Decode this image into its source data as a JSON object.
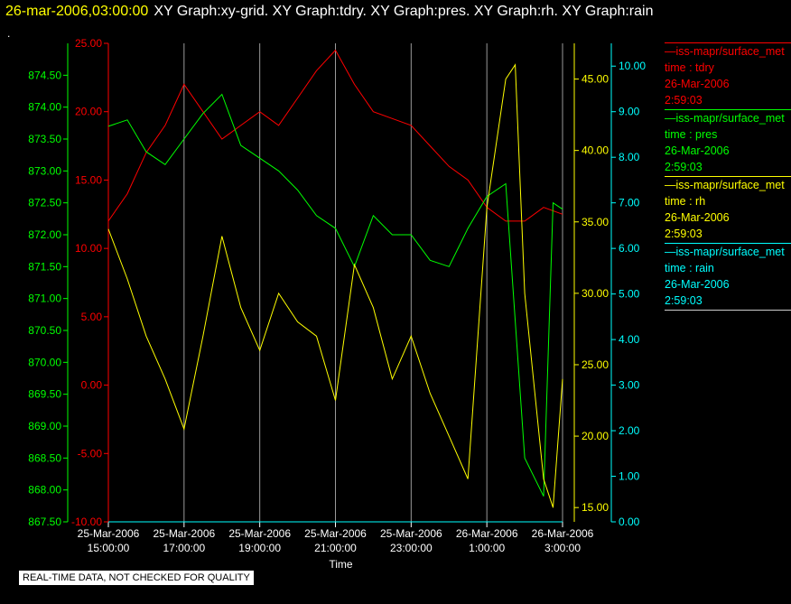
{
  "header": {
    "time": "26-mar-2006,03:00:00",
    "graphs": "XY Graph:xy-grid.  XY Graph:tdry.  XY Graph:pres.  XY Graph:rh.  XY Graph:rain",
    "dot": "."
  },
  "notice": "REAL-TIME DATA, NOT CHECKED FOR QUALITY",
  "chart_data": {
    "type": "line",
    "xlabel": "Time",
    "x_ticks": [
      {
        "date": "25-Mar-2006",
        "time": "15:00:00"
      },
      {
        "date": "25-Mar-2006",
        "time": "17:00:00"
      },
      {
        "date": "25-Mar-2006",
        "time": "19:00:00"
      },
      {
        "date": "25-Mar-2006",
        "time": "21:00:00"
      },
      {
        "date": "25-Mar-2006",
        "time": "23:00:00"
      },
      {
        "date": "26-Mar-2006",
        "time": "1:00:00"
      },
      {
        "date": "26-Mar-2006",
        "time": "3:00:00"
      }
    ],
    "x_range": [
      "25-Mar-2006 15:00",
      "26-Mar-2006 03:00"
    ],
    "grid": "vertical lines at x ticks",
    "axes": {
      "pres": {
        "color": "#00ff00",
        "range": [
          867.5,
          875.0
        ],
        "ticks": [
          "874.50",
          "874.00",
          "873.50",
          "873.00",
          "872.50",
          "872.00",
          "871.50",
          "871.00",
          "870.50",
          "870.00",
          "869.50",
          "869.00",
          "868.50",
          "868.00",
          "867.50"
        ]
      },
      "tdry": {
        "color": "#ff0000",
        "range": [
          -10.0,
          25.0
        ],
        "ticks": [
          "25.00",
          "20.00",
          "15.00",
          "10.00",
          "5.00",
          "0.00",
          "-5.00",
          "-10.00"
        ]
      },
      "rh": {
        "color": "#ffff00",
        "range": [
          14.0,
          47.5
        ],
        "ticks": [
          "45.00",
          "40.00",
          "35.00",
          "30.00",
          "25.00",
          "20.00",
          "15.00"
        ]
      },
      "rain": {
        "color": "#00ffff",
        "range": [
          0.0,
          10.5
        ],
        "ticks": [
          "10.00",
          "9.00",
          "8.00",
          "7.00",
          "6.00",
          "5.00",
          "4.00",
          "3.00",
          "2.00",
          "1.00",
          "0.00"
        ]
      }
    },
    "series": [
      {
        "name": "tdry",
        "color": "#ff0000",
        "x": [
          "15:00",
          "15:30",
          "16:00",
          "16:30",
          "17:00",
          "17:30",
          "18:00",
          "18:30",
          "19:00",
          "19:30",
          "20:00",
          "20:30",
          "21:00",
          "21:30",
          "22:00",
          "22:30",
          "23:00",
          "23:30",
          "00:00",
          "00:30",
          "01:00",
          "01:30",
          "02:00",
          "02:30",
          "03:00"
        ],
        "values": [
          12,
          14,
          17,
          19,
          22,
          20,
          18,
          19,
          20,
          19,
          21,
          23,
          24.5,
          22,
          20,
          19.5,
          19,
          17.5,
          16,
          15,
          13,
          12,
          12,
          13,
          12.5
        ]
      },
      {
        "name": "pres",
        "color": "#00ff00",
        "x": [
          "15:00",
          "15:30",
          "16:00",
          "16:30",
          "17:00",
          "17:30",
          "18:00",
          "18:30",
          "19:00",
          "19:30",
          "20:00",
          "20:30",
          "21:00",
          "21:30",
          "22:00",
          "22:30",
          "23:00",
          "23:30",
          "00:00",
          "00:30",
          "01:00",
          "01:30",
          "02:00",
          "02:30",
          "02:45",
          "03:00"
        ],
        "values": [
          873.7,
          873.8,
          873.3,
          873.1,
          873.5,
          873.9,
          874.2,
          873.4,
          873.2,
          873.0,
          872.7,
          872.3,
          872.1,
          871.5,
          872.3,
          872.0,
          872.0,
          871.6,
          871.5,
          872.1,
          872.6,
          872.8,
          868.5,
          867.9,
          872.5,
          872.4
        ]
      },
      {
        "name": "rh",
        "color": "#ffff00",
        "x": [
          "15:00",
          "15:30",
          "16:00",
          "16:30",
          "17:00",
          "17:30",
          "18:00",
          "18:30",
          "19:00",
          "19:30",
          "20:00",
          "20:30",
          "21:00",
          "21:30",
          "22:00",
          "22:30",
          "23:00",
          "23:30",
          "00:00",
          "00:30",
          "01:00",
          "01:30",
          "01:45",
          "02:00",
          "02:30",
          "02:45",
          "03:00"
        ],
        "values": [
          34.5,
          31,
          27,
          24,
          20.5,
          27,
          34,
          29,
          26,
          30,
          28,
          27,
          22.5,
          32,
          29,
          24,
          27,
          23,
          20,
          17,
          36,
          45,
          46,
          30,
          17,
          15,
          24
        ]
      },
      {
        "name": "rain",
        "color": "#00ffff",
        "x": [
          "15:00",
          "03:00"
        ],
        "values": [
          0,
          0
        ]
      }
    ]
  },
  "legend": [
    {
      "name": "iss-mapr/surface_met",
      "field": "time : tdry",
      "date": "26-Mar-2006",
      "time": "2:59:03",
      "color": "#ff0000"
    },
    {
      "name": "iss-mapr/surface_met",
      "field": "time : pres",
      "date": "26-Mar-2006",
      "time": "2:59:03",
      "color": "#00ff00"
    },
    {
      "name": "iss-mapr/surface_met",
      "field": "time : rh",
      "date": "26-Mar-2006",
      "time": "2:59:03",
      "color": "#ffff00"
    },
    {
      "name": "iss-mapr/surface_met",
      "field": "time : rain",
      "date": "26-Mar-2006",
      "time": "2:59:03",
      "color": "#00ffff"
    }
  ]
}
